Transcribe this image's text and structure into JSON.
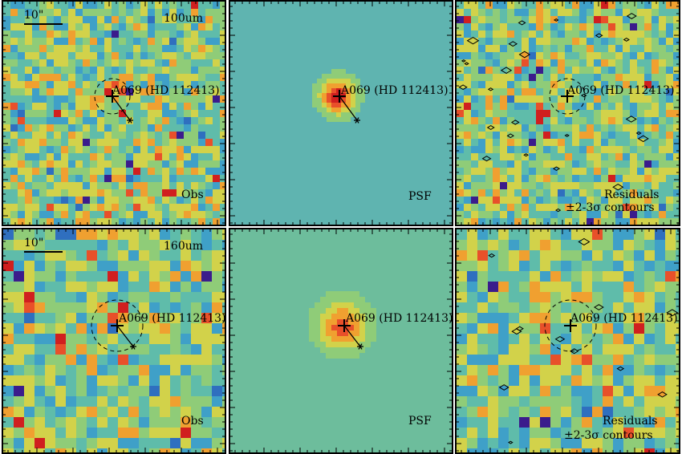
{
  "figure": {
    "rows": [
      {
        "band": "100um",
        "scalebar_label": "10\"",
        "panels": [
          {
            "kind": "obs",
            "label": "Obs",
            "target": "A069 (HD 112413)"
          },
          {
            "kind": "psf",
            "label": "PSF",
            "target": "A069 (HD 112413)"
          },
          {
            "kind": "residuals",
            "label": "Residuals",
            "label2": "±2-3σ contours",
            "target": "A069 (HD 112413)"
          }
        ]
      },
      {
        "band": "160um",
        "scalebar_label": "10\"",
        "panels": [
          {
            "kind": "obs",
            "label": "Obs",
            "target": "A069 (HD 112413)"
          },
          {
            "kind": "psf",
            "label": "PSF",
            "target": "A069 (HD 112413)"
          },
          {
            "kind": "residuals",
            "label": "Residuals",
            "label2": "±2-3σ contours",
            "target": "A069 (HD 112413)"
          }
        ]
      }
    ],
    "colormap": [
      "#3b1c8c",
      "#2f6fbf",
      "#3fa0c8",
      "#5fbcaa",
      "#8fcc78",
      "#d2d24a",
      "#f0a030",
      "#e8502a",
      "#d01f1f"
    ],
    "psf_bg": "#5fb4b0",
    "psf_bg_2": "#6dbd9c"
  }
}
